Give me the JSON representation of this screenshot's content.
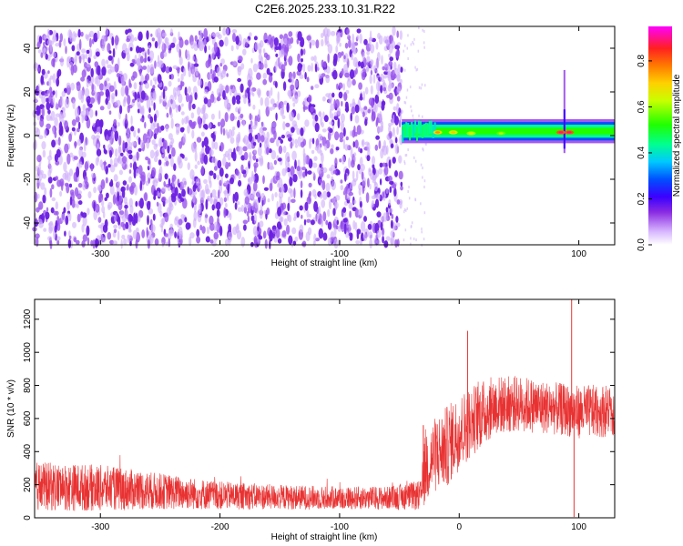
{
  "title": "C2E6.2025.233.10.31.R22",
  "chart_data": [
    {
      "type": "heatmap",
      "xlabel": "Height of straight line (km)",
      "ylabel": "Frequency (Hz)",
      "xlim": [
        -355,
        130
      ],
      "ylim": [
        -50,
        50
      ],
      "x_ticks": [
        -300,
        -200,
        -100,
        0,
        100
      ],
      "y_ticks": [
        -40,
        -20,
        0,
        20,
        40
      ],
      "noise_region": {
        "x": [
          -355,
          -48
        ],
        "y": [
          -50,
          48
        ]
      },
      "signal_band": {
        "x": [
          -48,
          130
        ],
        "center_freq": 2,
        "half_width": 3
      },
      "hotspots": [
        {
          "x": -18,
          "y": 1.5,
          "value": 0.8
        },
        {
          "x": -5,
          "y": 1.5,
          "value": 0.75
        },
        {
          "x": 10,
          "y": 1,
          "value": 0.7
        },
        {
          "x": 35,
          "y": 1,
          "value": 0.65
        },
        {
          "x": 85,
          "y": 1.5,
          "value": 0.95
        },
        {
          "x": 92,
          "y": 1.5,
          "value": 0.95
        }
      ],
      "spikes": [
        {
          "x": 88,
          "y_range": [
            -8,
            30
          ]
        }
      ],
      "colorbar": {
        "label": "Normalized spectral amplitude",
        "range": [
          0,
          0.95
        ],
        "ticks": [
          0.0,
          0.2,
          0.4,
          0.6,
          0.8
        ]
      }
    },
    {
      "type": "line",
      "xlabel": "Height of straight line (km)",
      "ylabel": "SNR (10 * v/v)",
      "xlim": [
        -355,
        130
      ],
      "ylim": [
        0,
        1320
      ],
      "x_ticks": [
        -300,
        -200,
        -100,
        0,
        100
      ],
      "y_ticks": [
        0,
        200,
        400,
        600,
        800,
        1000,
        1200
      ],
      "color": "#e83232",
      "trend": [
        {
          "x": -355,
          "y": 190,
          "spread": 150
        },
        {
          "x": -300,
          "y": 180,
          "spread": 140
        },
        {
          "x": -250,
          "y": 160,
          "spread": 110
        },
        {
          "x": -200,
          "y": 135,
          "spread": 85
        },
        {
          "x": -150,
          "y": 125,
          "spread": 75
        },
        {
          "x": -100,
          "y": 120,
          "spread": 70
        },
        {
          "x": -60,
          "y": 120,
          "spread": 70
        },
        {
          "x": -32,
          "y": 135,
          "spread": 90
        },
        {
          "x": -28,
          "y": 320,
          "spread": 240
        },
        {
          "x": -20,
          "y": 380,
          "spread": 230
        },
        {
          "x": -10,
          "y": 430,
          "spread": 250
        },
        {
          "x": 0,
          "y": 520,
          "spread": 230
        },
        {
          "x": 15,
          "y": 610,
          "spread": 210
        },
        {
          "x": 30,
          "y": 680,
          "spread": 180
        },
        {
          "x": 50,
          "y": 690,
          "spread": 170
        },
        {
          "x": 80,
          "y": 660,
          "spread": 160
        },
        {
          "x": 100,
          "y": 640,
          "spread": 160
        },
        {
          "x": 130,
          "y": 650,
          "spread": 160
        }
      ],
      "spikes": [
        {
          "x": 7,
          "y": 1130
        },
        {
          "x": 94,
          "y": 1320
        },
        {
          "x": 96,
          "y": 5
        },
        {
          "x": -30,
          "y": 560
        }
      ]
    }
  ]
}
